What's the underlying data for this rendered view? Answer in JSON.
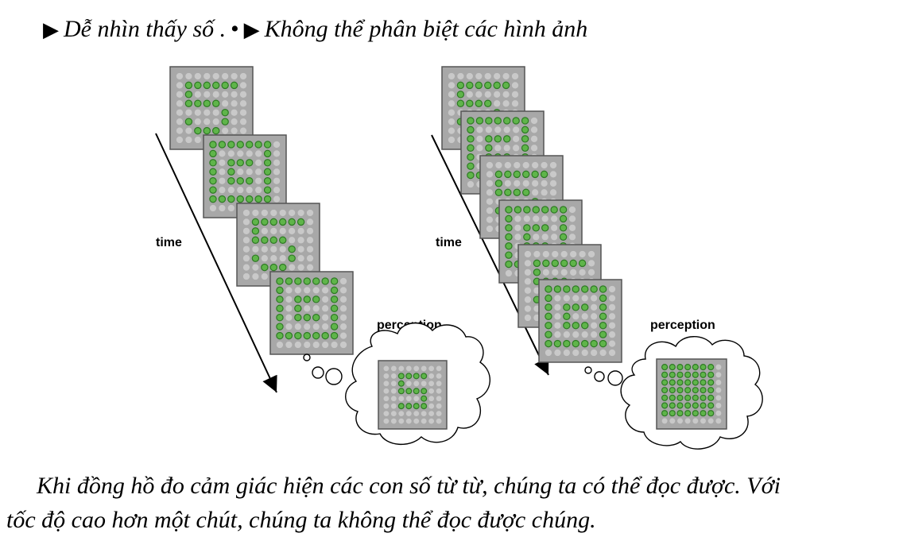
{
  "header": {
    "bullet1": "Dễ nhìn thấy số .",
    "separator": "•",
    "bullet2": "Không thể phân biệt các hình ảnh"
  },
  "figure": {
    "left": {
      "time_label": "time",
      "perception_label": "perception",
      "frames": [
        [
          "111111",
          "100000",
          "111100",
          "000010",
          "100010",
          "011100"
        ],
        [
          "1111111",
          "1000001",
          "1011101",
          "1010001",
          "1011101",
          "1000001",
          "1111111"
        ],
        [
          "111111",
          "100000",
          "111100",
          "000010",
          "100010",
          "011100"
        ],
        [
          "1111111",
          "1000001",
          "1011101",
          "1010001",
          "1011101",
          "1000001",
          "1111111"
        ]
      ],
      "result": [
        "1111",
        "1000",
        "1111",
        "0001",
        "1111"
      ]
    },
    "right": {
      "time_label": "time",
      "perception_label": "perception",
      "frames": [
        [
          "111111",
          "100000",
          "111100",
          "000010",
          "100010",
          "011100"
        ],
        [
          "1111111",
          "1000001",
          "1011101",
          "1010001",
          "1011101",
          "1000001",
          "1111111"
        ],
        [
          "111111",
          "100000",
          "111100",
          "000010",
          "100010",
          "011100"
        ],
        [
          "1111111",
          "1000001",
          "1011101",
          "1010001",
          "1011101",
          "1000001",
          "1111111"
        ],
        [
          "111111",
          "100000",
          "111100",
          "000010",
          "100010",
          "011100"
        ],
        [
          "1111111",
          "1000001",
          "1011101",
          "1010001",
          "1011101",
          "1000001",
          "1111111"
        ]
      ],
      "result": [
        "1111111",
        "1111111",
        "1111111",
        "1111111",
        "1111111",
        "1111111",
        "1111111"
      ]
    },
    "colors": {
      "on": "#5fb54a",
      "on_stroke": "#2e7a24",
      "off": "#c9c9c9",
      "panel": "#a8a8a8",
      "panel_border": "#555555"
    }
  },
  "paragraph": {
    "line1": "Khi đồng hồ đo cảm giác hiện các con số từ từ, chúng ta có thể đọc được. Với",
    "line2": "tốc độ cao hơn một chút, chúng ta không thể đọc được chúng."
  }
}
